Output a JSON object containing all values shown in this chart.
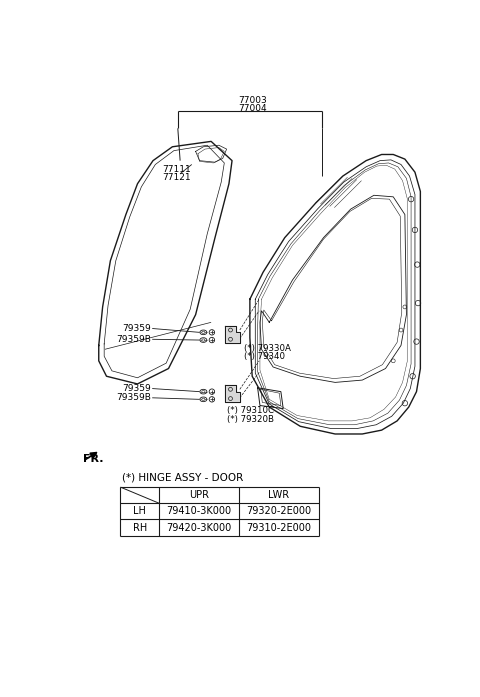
{
  "background_color": "#ffffff",
  "part_numbers_top": [
    "77003",
    "77004"
  ],
  "part_numbers_left": [
    "77111",
    "77121"
  ],
  "labels": {
    "79359_upper": "79359",
    "79359B_upper": "79359B",
    "79330A": "(*) 79330A",
    "79340": "(*) 79340",
    "79359_lower": "79359",
    "79359B_lower": "79359B",
    "79310C": "(*) 79310C",
    "79320B": "(*) 79320B"
  },
  "table_title": "(*) HINGE ASSY - DOOR",
  "table_headers": [
    "",
    "UPR",
    "LWR"
  ],
  "table_rows": [
    [
      "LH",
      "79410-3K000",
      "79320-2E000"
    ],
    [
      "RH",
      "79420-3K000",
      "79310-2E000"
    ]
  ],
  "fr_label": "FR.",
  "text_color": "#000000",
  "line_color": "#1a1a1a",
  "font_size_labels": 6.5,
  "font_size_table": 7,
  "font_size_fr": 8
}
